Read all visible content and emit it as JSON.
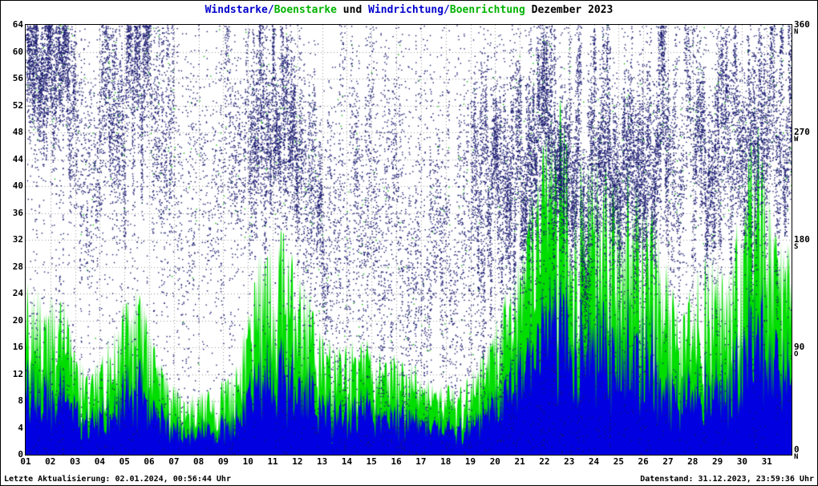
{
  "title": {
    "parts": [
      {
        "text": "Windstarke/",
        "color": "#0000cd"
      },
      {
        "text": "Boenstarke",
        "color": "#00b400"
      },
      {
        "text": " und ",
        "color": "#000000"
      },
      {
        "text": "Windrichtung/",
        "color": "#0000cd"
      },
      {
        "text": "Boenrichtung",
        "color": "#00b400"
      },
      {
        "text": " Dezember 2023",
        "color": "#000000"
      }
    ]
  },
  "footer": {
    "last_update": "Letzte Aktualisierung: 02.01.2024, 00:56:44 Uhr",
    "data_state": "Datenstand: 31.12.2023, 23:59:36 Uhr"
  },
  "chart_data": {
    "type": "mixed",
    "title": "Windstarke/Boenstarke und Windrichtung/Boenrichtung Dezember 2023",
    "x_categories": [
      "01",
      "02",
      "03",
      "04",
      "05",
      "06",
      "07",
      "08",
      "09",
      "10",
      "11",
      "12",
      "13",
      "14",
      "15",
      "16",
      "17",
      "18",
      "19",
      "20",
      "21",
      "22",
      "23",
      "24",
      "25",
      "26",
      "27",
      "28",
      "29",
      "30",
      "31"
    ],
    "left_axis": {
      "min": 0,
      "max": 64,
      "tick_step": 4,
      "unit": "wind speed"
    },
    "right_axis": {
      "min": 0,
      "max": 360,
      "unit": "degrees",
      "ticks": [
        {
          "value": 360,
          "dir": "N"
        },
        {
          "value": 270,
          "dir": "W"
        },
        {
          "value": 180,
          "dir": "S"
        },
        {
          "value": 90,
          "dir": "O"
        },
        {
          "value": 0,
          "dir": "N"
        }
      ]
    },
    "grid": true,
    "colors": {
      "wind_area": "#0000e0",
      "gust_area": "#00dd00",
      "wind_dir_dots": "#191970",
      "gust_dir_dots": "#00b800",
      "grid": "#999999",
      "frame": "#000000"
    },
    "series": [
      {
        "name": "Windstarke",
        "type": "area",
        "axis": "left",
        "color": "#0000e0",
        "daily_max": [
          12,
          10,
          5,
          8,
          10,
          6,
          3,
          4,
          5,
          14,
          16,
          10,
          6,
          8,
          6,
          6,
          5,
          4,
          8,
          12,
          20,
          24,
          20,
          22,
          20,
          16,
          8,
          14,
          12,
          22,
          14
        ]
      },
      {
        "name": "Boenstarke",
        "type": "area",
        "axis": "left",
        "color": "#00dd00",
        "daily_max": [
          26,
          24,
          12,
          20,
          26,
          14,
          9,
          10,
          13,
          31,
          34,
          24,
          16,
          18,
          16,
          14,
          12,
          10,
          16,
          25,
          40,
          56,
          44,
          46,
          44,
          36,
          20,
          32,
          28,
          52,
          32
        ]
      },
      {
        "name": "Windrichtung",
        "type": "scatter",
        "axis": "right",
        "color": "#191970",
        "daily_direction_mean": [
          330,
          320,
          260,
          300,
          300,
          280,
          240,
          220,
          270,
          250,
          260,
          250,
          220,
          210,
          200,
          180,
          150,
          160,
          200,
          230,
          240,
          250,
          240,
          230,
          240,
          250,
          260,
          270,
          260,
          270,
          280
        ],
        "daily_direction_spread": [
          35,
          50,
          70,
          60,
          55,
          70,
          90,
          90,
          70,
          55,
          50,
          60,
          80,
          80,
          80,
          80,
          70,
          80,
          70,
          60,
          55,
          50,
          55,
          55,
          55,
          60,
          70,
          55,
          60,
          55,
          60
        ],
        "daily_density": [
          0.9,
          0.8,
          0.5,
          0.7,
          0.8,
          0.6,
          0.35,
          0.4,
          0.5,
          0.85,
          0.9,
          0.7,
          0.5,
          0.55,
          0.5,
          0.45,
          0.5,
          0.45,
          0.8,
          0.9,
          0.95,
          0.95,
          0.95,
          0.95,
          0.95,
          0.9,
          0.6,
          0.85,
          0.8,
          0.85,
          0.8
        ]
      },
      {
        "name": "Boenrichtung",
        "type": "scatter",
        "axis": "right",
        "color": "#00b800",
        "note": "sparse green direction dots, mostly covered by Windrichtung dots"
      }
    ]
  }
}
